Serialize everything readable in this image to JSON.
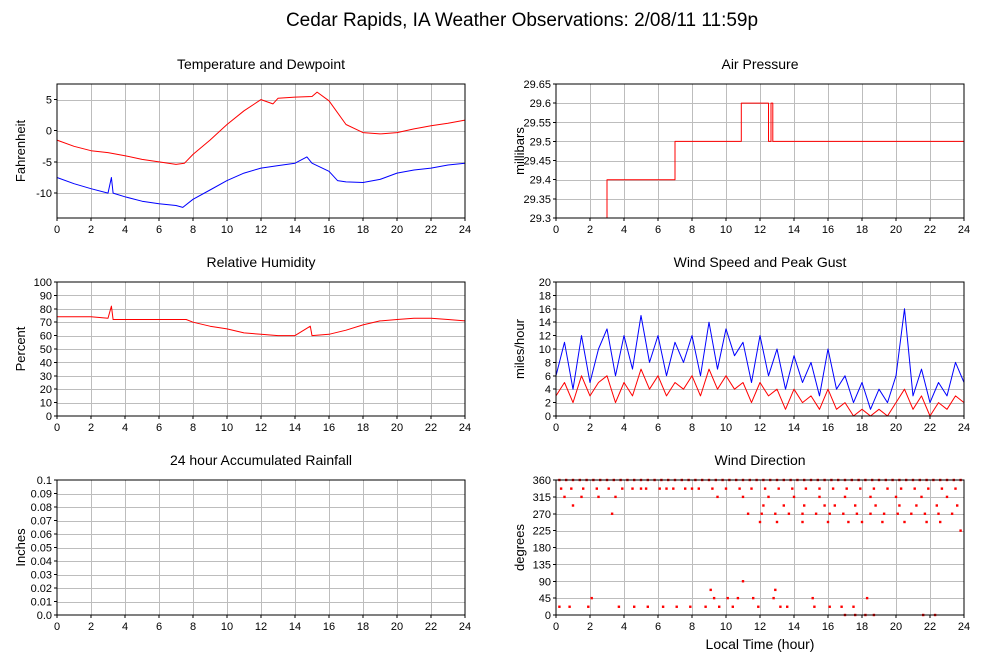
{
  "title": "Cedar Rapids, IA Weather Observations: 2/08/11 11:59p",
  "colors": {
    "red": "#ff0000",
    "blue": "#0000ff",
    "grid": "#bdbdbd"
  },
  "chart_data": [
    {
      "id": "temperature",
      "type": "line",
      "title": "Temperature and Dewpoint",
      "ylabel": "Fahrenheit",
      "xlabel": "",
      "xlim": [
        0,
        24
      ],
      "ylim": [
        -14,
        7.5
      ],
      "xticks": [
        0,
        2,
        4,
        6,
        8,
        10,
        12,
        14,
        16,
        18,
        20,
        22,
        24
      ],
      "yticks": [
        -10,
        -5,
        0,
        5
      ],
      "yticklabels": [
        "-10",
        "-5",
        "0",
        "5"
      ],
      "series": [
        {
          "color": "#ff0000",
          "x": [
            0,
            1,
            2,
            3,
            4,
            5,
            6,
            7,
            7.5,
            8,
            9,
            10,
            11,
            12,
            12.7,
            13,
            14,
            15,
            15.3,
            16,
            17,
            18,
            19,
            20,
            21,
            22,
            23,
            24
          ],
          "y": [
            -1.5,
            -2.5,
            -3.2,
            -3.5,
            -4.0,
            -4.6,
            -5.0,
            -5.4,
            -5.2,
            -3.8,
            -1.5,
            1.0,
            3.2,
            5.0,
            4.3,
            5.2,
            5.4,
            5.5,
            6.2,
            4.8,
            1.0,
            -0.3,
            -0.5,
            -0.3,
            0.3,
            0.8,
            1.2,
            1.7
          ]
        },
        {
          "color": "#0000ff",
          "x": [
            0,
            1,
            2,
            3,
            3.2,
            3.3,
            4,
            5,
            6,
            7,
            7.4,
            8,
            9,
            10,
            11,
            12,
            13,
            14,
            14.7,
            15,
            16,
            16.5,
            17,
            18,
            19,
            20,
            21,
            22,
            23,
            24
          ],
          "y": [
            -7.5,
            -8.5,
            -9.3,
            -10.0,
            -7.5,
            -10.0,
            -10.6,
            -11.3,
            -11.7,
            -12.0,
            -12.3,
            -11.0,
            -9.5,
            -8.0,
            -6.8,
            -6.0,
            -5.6,
            -5.2,
            -4.2,
            -5.2,
            -6.5,
            -8.0,
            -8.2,
            -8.3,
            -7.8,
            -6.8,
            -6.3,
            -6.0,
            -5.5,
            -5.2
          ]
        }
      ]
    },
    {
      "id": "pressure",
      "type": "line",
      "title": "Air Pressure",
      "ylabel": "millibars",
      "xlabel": "",
      "xlim": [
        0,
        24
      ],
      "ylim": [
        29.3,
        29.65
      ],
      "xticks": [
        0,
        2,
        4,
        6,
        8,
        10,
        12,
        14,
        16,
        18,
        20,
        22,
        24
      ],
      "yticks": [
        29.3,
        29.35,
        29.4,
        29.45,
        29.5,
        29.55,
        29.6,
        29.65
      ],
      "yticklabels": [
        "29.3",
        "29.35",
        "29.4",
        "29.45",
        "29.5",
        "29.55",
        "29.6",
        "29.65"
      ],
      "series": [
        {
          "color": "#ff0000",
          "step": true,
          "x": [
            0,
            3,
            7,
            10.9,
            12.5,
            12.65,
            12.75,
            24
          ],
          "y": [
            29.3,
            29.4,
            29.5,
            29.6,
            29.5,
            29.6,
            29.5,
            29.5
          ]
        }
      ]
    },
    {
      "id": "humidity",
      "type": "line",
      "title": "Relative Humidity",
      "ylabel": "Percent",
      "xlabel": "",
      "xlim": [
        0,
        24
      ],
      "ylim": [
        0,
        100
      ],
      "xticks": [
        0,
        2,
        4,
        6,
        8,
        10,
        12,
        14,
        16,
        18,
        20,
        22,
        24
      ],
      "yticks": [
        0,
        10,
        20,
        30,
        40,
        50,
        60,
        70,
        80,
        90,
        100
      ],
      "yticklabels": [
        "0",
        "10",
        "20",
        "30",
        "40",
        "50",
        "60",
        "70",
        "80",
        "90",
        "100"
      ],
      "series": [
        {
          "color": "#ff0000",
          "x": [
            0,
            1,
            2,
            3,
            3.2,
            3.3,
            4,
            5,
            6,
            7,
            7.6,
            8,
            9,
            10,
            11,
            12,
            13,
            14,
            14.9,
            15,
            16,
            17,
            18,
            19,
            20,
            21,
            22,
            23,
            24
          ],
          "y": [
            74,
            74,
            74,
            73,
            82,
            72,
            72,
            72,
            72,
            72,
            72,
            70,
            67,
            65,
            62,
            61,
            60,
            60,
            67,
            60,
            61,
            64,
            68,
            71,
            72,
            73,
            73,
            72,
            71
          ]
        }
      ]
    },
    {
      "id": "wind-speed",
      "type": "line",
      "title": "Wind Speed and Peak Gust",
      "ylabel": "miles/hour",
      "xlabel": "",
      "xlim": [
        0,
        24
      ],
      "ylim": [
        0,
        20
      ],
      "xticks": [
        0,
        2,
        4,
        6,
        8,
        10,
        12,
        14,
        16,
        18,
        20,
        22,
        24
      ],
      "yticks": [
        0,
        2,
        4,
        6,
        8,
        10,
        12,
        14,
        16,
        18,
        20
      ],
      "yticklabels": [
        "0",
        "2",
        "4",
        "6",
        "8",
        "10",
        "12",
        "14",
        "16",
        "18",
        "20"
      ],
      "series": [
        {
          "color": "#0000ff",
          "x": [
            0,
            0.5,
            1,
            1.5,
            2,
            2.5,
            3,
            3.5,
            4,
            4.5,
            5,
            5.5,
            6,
            6.5,
            7,
            7.5,
            8,
            8.5,
            9,
            9.5,
            10,
            10.5,
            11,
            11.5,
            12,
            12.5,
            13,
            13.5,
            14,
            14.5,
            15,
            15.5,
            16,
            16.5,
            17,
            17.5,
            18,
            18.5,
            19,
            19.5,
            20,
            20.5,
            21,
            21.5,
            22,
            22.5,
            23,
            23.5,
            24
          ],
          "y": [
            6,
            11,
            4,
            12,
            5,
            10,
            13,
            6,
            12,
            7,
            15,
            8,
            12,
            6,
            11,
            8,
            12,
            6,
            14,
            7,
            13,
            9,
            11,
            5,
            12,
            6,
            10,
            4,
            9,
            5,
            8,
            3,
            10,
            4,
            6,
            2,
            5,
            1,
            4,
            2,
            6,
            16,
            3,
            7,
            2,
            5,
            3,
            8,
            5
          ]
        },
        {
          "color": "#ff0000",
          "x": [
            0,
            0.5,
            1,
            1.5,
            2,
            2.5,
            3,
            3.5,
            4,
            4.5,
            5,
            5.5,
            6,
            6.5,
            7,
            7.5,
            8,
            8.5,
            9,
            9.5,
            10,
            10.5,
            11,
            11.5,
            12,
            12.5,
            13,
            13.5,
            14,
            14.5,
            15,
            15.5,
            16,
            16.5,
            17,
            17.5,
            18,
            18.5,
            19,
            19.5,
            20,
            20.5,
            21,
            21.5,
            22,
            22.5,
            23,
            23.5,
            24
          ],
          "y": [
            3,
            5,
            2,
            6,
            3,
            5,
            6,
            2,
            5,
            3,
            7,
            4,
            6,
            3,
            5,
            4,
            6,
            3,
            7,
            4,
            6,
            4,
            5,
            2,
            5,
            3,
            4,
            1,
            4,
            2,
            3,
            1,
            4,
            1,
            2,
            0,
            1,
            0,
            1,
            0,
            2,
            4,
            1,
            3,
            0,
            2,
            1,
            3,
            2
          ]
        }
      ]
    },
    {
      "id": "rainfall",
      "type": "line",
      "title": "24 hour Accumulated Rainfall",
      "ylabel": "Inches",
      "xlabel": "",
      "xlim": [
        0,
        24
      ],
      "ylim": [
        0,
        0.1
      ],
      "xticks": [
        0,
        2,
        4,
        6,
        8,
        10,
        12,
        14,
        16,
        18,
        20,
        22,
        24
      ],
      "yticks": [
        0,
        0.01,
        0.02,
        0.03,
        0.04,
        0.05,
        0.06,
        0.07,
        0.08,
        0.09,
        0.1
      ],
      "yticklabels": [
        "0.0",
        "0.01",
        "0.02",
        "0.03",
        "0.04",
        "0.05",
        "0.06",
        "0.07",
        "0.08",
        "0.09",
        "0.1"
      ],
      "series": [
        {
          "color": "#ff0000",
          "x": [
            0,
            24
          ],
          "y": [
            0,
            0
          ]
        }
      ]
    },
    {
      "id": "wind-direction",
      "type": "scatter",
      "title": "Wind Direction",
      "ylabel": "degrees",
      "xlabel": "Local Time (hour)",
      "xlim": [
        0,
        24
      ],
      "ylim": [
        0,
        360
      ],
      "xticks": [
        0,
        2,
        4,
        6,
        8,
        10,
        12,
        14,
        16,
        18,
        20,
        22,
        24
      ],
      "yticks": [
        0,
        45,
        90,
        135,
        180,
        225,
        270,
        315,
        360
      ],
      "yticklabels": [
        "0",
        "45",
        "90",
        "135",
        "180",
        "225",
        "270",
        "315",
        "360"
      ],
      "series": [
        {
          "color": "#ff0000",
          "x": [
            0.2,
            0.6,
            1.0,
            1.4,
            1.8,
            2.2,
            2.6,
            3.0,
            3.4,
            3.8,
            4.2,
            4.6,
            5.0,
            5.4,
            5.8,
            6.2,
            6.6,
            7.0,
            7.4,
            7.8,
            8.2,
            8.6,
            9.0,
            9.4,
            9.8,
            10.2,
            10.6,
            11.0,
            11.4,
            11.8,
            12.2,
            12.6,
            13.0,
            13.4,
            13.8,
            14.2,
            14.6,
            15.0,
            15.4,
            15.8,
            16.2,
            16.6,
            17.0,
            17.4,
            17.8,
            18.2,
            18.6,
            19.0,
            19.4,
            19.8,
            20.2,
            20.6,
            21.0,
            21.4,
            21.8,
            22.2,
            22.6,
            23.0,
            23.4,
            23.8,
            0.3,
            0.9,
            1.6,
            2.4,
            3.1,
            3.9,
            4.5,
            5.3,
            6.1,
            6.9,
            7.6,
            8.4,
            9.2,
            10.0,
            10.8,
            11.5,
            12.3,
            13.1,
            13.9,
            14.7,
            15.5,
            16.3,
            17.1,
            17.9,
            18.7,
            19.5,
            20.3,
            21.1,
            21.9,
            22.7,
            23.5,
            0.5,
            1.5,
            2.5,
            3.5,
            5.0,
            6.5,
            8.0,
            9.5,
            11.0,
            12.5,
            14.0,
            15.5,
            17.0,
            18.5,
            20.0,
            21.5,
            23.0,
            12.2,
            13.4,
            14.6,
            15.8,
            16.4,
            17.6,
            18.8,
            20.2,
            21.2,
            22.4,
            23.6,
            11.3,
            12.1,
            12.9,
            13.7,
            14.5,
            15.3,
            16.1,
            16.9,
            17.7,
            18.5,
            19.3,
            20.1,
            20.9,
            21.7,
            22.5,
            23.3,
            1.0,
            3.3,
            12.0,
            13.0,
            14.5,
            16.0,
            17.2,
            18.0,
            19.2,
            20.5,
            21.8,
            22.6,
            23.8,
            0.2,
            0.8,
            1.9,
            3.7,
            4.6,
            5.4,
            6.3,
            7.1,
            7.9,
            8.8,
            9.6,
            10.4,
            11.9,
            13.2,
            15.2,
            16.1,
            9.3,
            10.1,
            10.7,
            11.6,
            12.8,
            13.6,
            15.1,
            16.8,
            17.5,
            18.3,
            17.0,
            17.6,
            18.2,
            18.7,
            21.6,
            22.3,
            2.1,
            9.1,
            11.0,
            12.9
          ],
          "y": [
            360,
            360,
            360,
            360,
            360,
            360,
            360,
            360,
            360,
            360,
            360,
            360,
            360,
            360,
            360,
            360,
            360,
            360,
            360,
            360,
            360,
            360,
            360,
            360,
            360,
            360,
            360,
            360,
            360,
            360,
            360,
            360,
            360,
            360,
            360,
            360,
            360,
            360,
            360,
            360,
            360,
            360,
            360,
            360,
            360,
            360,
            360,
            360,
            360,
            360,
            360,
            360,
            360,
            360,
            360,
            360,
            360,
            360,
            360,
            360,
            337,
            337,
            337,
            337,
            337,
            337,
            337,
            337,
            337,
            337,
            337,
            337,
            337,
            337,
            337,
            337,
            337,
            337,
            337,
            337,
            337,
            337,
            337,
            337,
            337,
            337,
            337,
            337,
            337,
            337,
            337,
            315,
            315,
            315,
            315,
            337,
            337,
            337,
            315,
            315,
            315,
            315,
            315,
            315,
            315,
            315,
            315,
            315,
            292,
            292,
            292,
            292,
            292,
            292,
            292,
            292,
            292,
            292,
            292,
            270,
            270,
            270,
            270,
            270,
            270,
            270,
            270,
            270,
            270,
            270,
            270,
            270,
            270,
            270,
            270,
            292,
            270,
            248,
            248,
            248,
            248,
            248,
            248,
            248,
            248,
            248,
            248,
            225,
            22,
            22,
            22,
            22,
            22,
            22,
            22,
            22,
            22,
            22,
            22,
            22,
            22,
            22,
            22,
            22,
            45,
            45,
            45,
            45,
            45,
            22,
            45,
            22,
            22,
            45,
            0,
            0,
            0,
            0,
            0,
            0,
            45,
            67,
            90,
            67
          ]
        }
      ]
    }
  ]
}
